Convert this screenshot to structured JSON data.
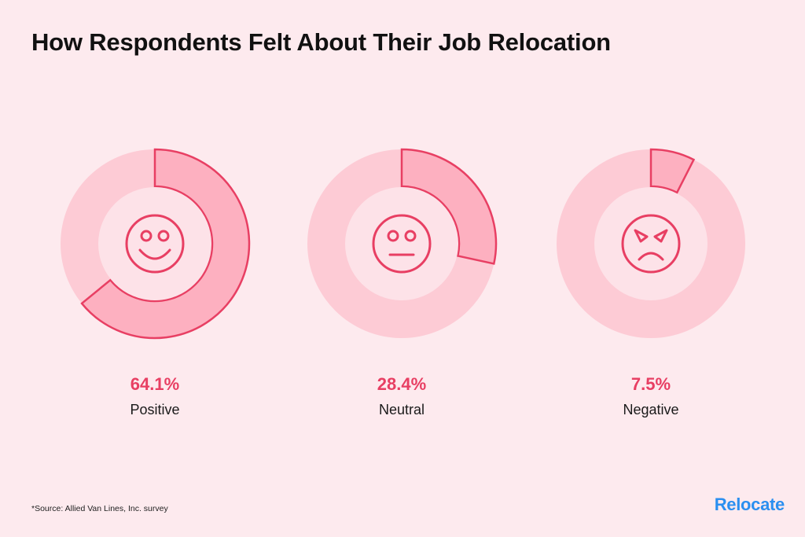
{
  "title": "How Respondents Felt About Their Job Relocation",
  "chart_data": {
    "type": "pie",
    "title": "How Respondents Felt About Their Job Relocation",
    "categories": [
      "Positive",
      "Neutral",
      "Negative"
    ],
    "values": [
      64.1,
      28.4,
      7.5
    ],
    "value_labels": [
      "64.1%",
      "28.4%",
      "7.5%"
    ],
    "icons": [
      "smiling-face-icon",
      "neutral-face-icon",
      "angry-face-icon"
    ]
  },
  "colors": {
    "background": "#fdeaee",
    "ring": "#fdcbd5",
    "inner": "#fde2e8",
    "highlight": "#fdb0c0",
    "stroke": "#e83f63",
    "value_text": "#e83f63",
    "brand": "#2b8ff0"
  },
  "source": "*Source: Allied Van Lines, Inc. survey",
  "brand": "Relocate"
}
